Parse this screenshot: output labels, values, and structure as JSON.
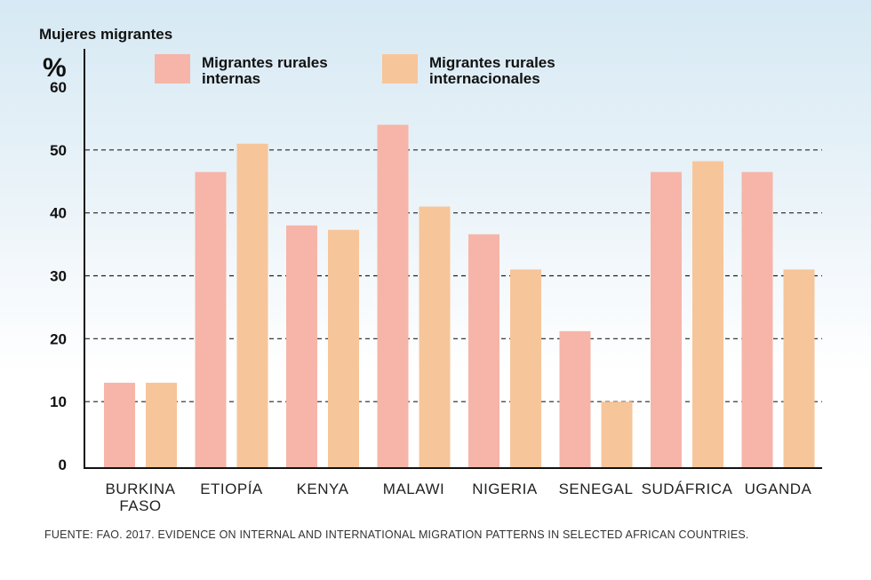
{
  "chart_data": {
    "type": "bar",
    "title": "Mujeres migrantes",
    "ylabel": "%",
    "xlabel": "",
    "categories": [
      "BURKINA FASO",
      "ETIOPÍA",
      "KENYA",
      "MALAWI",
      "NIGERIA",
      "SENEGAL",
      "SUDÁFRICA",
      "UGANDA"
    ],
    "series": [
      {
        "name": "Migrantes rurales internas",
        "color": "#f6b5a8",
        "values": [
          13,
          46.5,
          38,
          54,
          36.6,
          21.2,
          46.5,
          46.5
        ]
      },
      {
        "name": "Migrantes rurales internacionales",
        "color": "#f7c59a",
        "values": [
          13,
          51,
          37.3,
          41,
          31,
          10,
          48.2,
          31
        ]
      }
    ],
    "yticks": [
      0,
      10,
      20,
      30,
      40,
      50,
      60
    ],
    "ylim": [
      0,
      60
    ],
    "grid": true,
    "legend_position": "top"
  },
  "source": "FUENTE: FAO. 2017. EVIDENCE ON INTERNAL AND INTERNATIONAL MIGRATION PATTERNS IN SELECTED AFRICAN COUNTRIES."
}
